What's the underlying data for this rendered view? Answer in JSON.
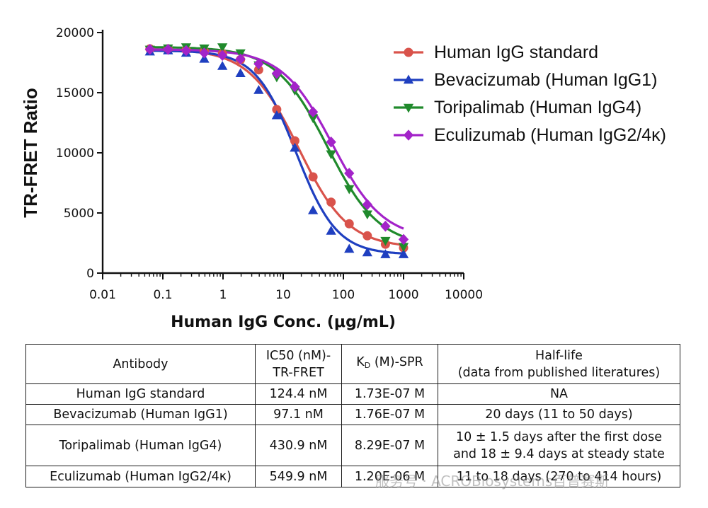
{
  "chart_data": {
    "type": "line",
    "xscale": "log",
    "xlabel": "Human IgG Conc. (μg/mL)",
    "ylabel": "TR-FRET Ratio",
    "xlim": [
      0.01,
      10000
    ],
    "ylim": [
      0,
      20000
    ],
    "xticks": [
      "0.01",
      "0.1",
      "1",
      "10",
      "100",
      "1000",
      "10000"
    ],
    "yticks": [
      "0",
      "5000",
      "10000",
      "15000",
      "20000"
    ],
    "grid": false,
    "legend_position": "top-right",
    "series": [
      {
        "name": "Human IgG standard",
        "color": "#d9534b",
        "marker": "circle",
        "x": [
          0.061,
          0.122,
          0.244,
          0.488,
          0.977,
          1.95,
          3.91,
          7.81,
          15.6,
          31.3,
          62.5,
          125,
          250,
          500,
          1000
        ],
        "y": [
          18650,
          18650,
          18550,
          18450,
          18250,
          17750,
          16900,
          13600,
          11000,
          8000,
          5900,
          4100,
          3100,
          2400,
          2100
        ]
      },
      {
        "name": "Bevacizumab (Human IgG1)",
        "color": "#1f3fc0",
        "marker": "triangle-up",
        "x": [
          0.061,
          0.122,
          0.244,
          0.488,
          0.977,
          1.95,
          3.91,
          7.81,
          15.6,
          31.3,
          62.5,
          125,
          250,
          500,
          1000
        ],
        "y": [
          18400,
          18500,
          18300,
          17800,
          17200,
          16600,
          15200,
          13100,
          10400,
          5200,
          3500,
          2000,
          1700,
          1550,
          1550
        ]
      },
      {
        "name": "Toripalimab (Human IgG4)",
        "color": "#208a2c",
        "marker": "triangle-down",
        "x": [
          0.061,
          0.122,
          0.244,
          0.488,
          0.977,
          1.95,
          3.91,
          7.81,
          15.6,
          31.3,
          62.5,
          125,
          250,
          500,
          1000
        ],
        "y": [
          18600,
          18700,
          18800,
          18700,
          18800,
          18300,
          17300,
          16300,
          15200,
          12900,
          9900,
          7000,
          4900,
          2700,
          2200
        ]
      },
      {
        "name": "Eculizumab (Human IgG2/4κ)",
        "color": "#a323c9",
        "marker": "diamond",
        "x": [
          0.061,
          0.122,
          0.244,
          0.488,
          0.977,
          1.95,
          3.91,
          7.81,
          15.6,
          31.3,
          62.5,
          125,
          250,
          500,
          1000
        ],
        "y": [
          18600,
          18600,
          18500,
          18300,
          18100,
          17800,
          17400,
          16600,
          15500,
          13400,
          10900,
          8300,
          5700,
          3900,
          2800
        ]
      }
    ]
  },
  "table": {
    "headers": {
      "antibody": "Antibody",
      "ic50_line1": "IC50 (nM)-",
      "ic50_line2": "TR-FRET",
      "kd_main": "K",
      "kd_sub": "D",
      "kd_rest": " (M)-SPR",
      "halflife_line1": "Half-life",
      "halflife_line2": "(data from published literatures)"
    },
    "rows": [
      {
        "antibody": "Human IgG standard",
        "ic50": "124.4 nM",
        "kd": "1.73E-07 M",
        "halflife_line1": "NA",
        "halflife_line2": ""
      },
      {
        "antibody": "Bevacizumab (Human IgG1)",
        "ic50": "97.1 nM",
        "kd": "1.76E-07 M",
        "halflife_line1": "20 days (11 to 50 days)",
        "halflife_line2": ""
      },
      {
        "antibody": "Toripalimab (Human IgG4)",
        "ic50": "430.9 nM",
        "kd": "8.29E-07 M",
        "halflife_line1": "10 ± 1.5 days after the first dose",
        "halflife_line2": "and 18 ± 9.4 days at steady state"
      },
      {
        "antibody": "Eculizumab (Human IgG2/4κ)",
        "ic50": "549.9 nM",
        "kd": "1.20E-06 M",
        "halflife_line1": "11 to 18 days (270 to 414 hours)",
        "halflife_line2": ""
      }
    ]
  },
  "watermark": "服务号 · ACROBiosystems百普赛斯"
}
